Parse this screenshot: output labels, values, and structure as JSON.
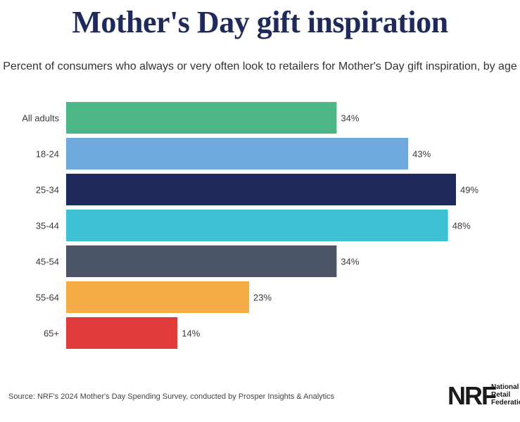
{
  "header": {
    "title": "Mother's Day gift inspiration",
    "subtitle": "Percent of consumers who always or very often look to retailers for Mother's Day gift inspiration, by age"
  },
  "chart_data": {
    "type": "bar",
    "orientation": "horizontal",
    "categories": [
      "All adults",
      "18-24",
      "25-34",
      "35-44",
      "45-54",
      "55-64",
      "65+"
    ],
    "values": [
      34,
      43,
      49,
      48,
      34,
      23,
      14
    ],
    "value_labels": [
      "34%",
      "43%",
      "49%",
      "48%",
      "34%",
      "23%",
      "14%"
    ],
    "colors": [
      "#4cb686",
      "#6fa8dc",
      "#1f2a5c",
      "#3fc1d4",
      "#4a5568",
      "#f6ad47",
      "#e03a3a"
    ],
    "xlim": [
      0,
      49
    ],
    "grid": false,
    "legend": "none"
  },
  "footer": {
    "source": "Source: NRF's 2024 Mother's Day Spending Survey, conducted by Prosper Insights & Analytics",
    "logo_mark": "NRF",
    "logo_lines": [
      "National",
      "Retail",
      "Federation"
    ]
  }
}
